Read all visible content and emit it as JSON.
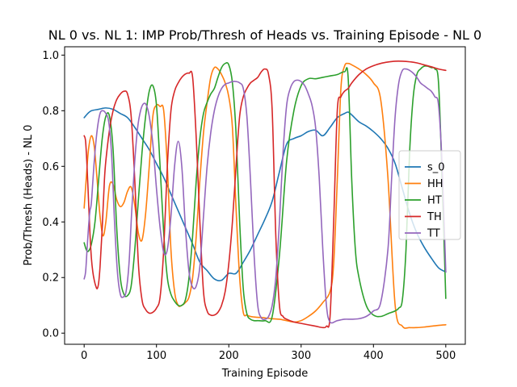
{
  "chart_data": {
    "type": "line",
    "title": "NL 0 vs. NL 1: IMP Prob/Thresh of Heads vs. Training Episode - NL 0",
    "xlabel": "Training Episode",
    "ylabel": "Prob/Thresh (Heads) - NL 0",
    "xlim": [
      -27,
      527
    ],
    "ylim": [
      -0.04,
      1.03
    ],
    "xticks": [
      0,
      100,
      200,
      300,
      400,
      500
    ],
    "yticks": [
      0.0,
      0.2,
      0.4,
      0.6,
      0.8,
      1.0
    ],
    "xtick_labels": [
      "0",
      "100",
      "200",
      "300",
      "400",
      "500"
    ],
    "ytick_labels": [
      "0.0",
      "0.2",
      "0.4",
      "0.6",
      "0.8",
      "1.0"
    ],
    "legend_position": "center-right",
    "grid": false,
    "series": [
      {
        "name": "s_0",
        "color": "#1f77b4",
        "x": [
          0,
          5,
          10,
          20,
          30,
          40,
          50,
          60,
          70,
          80,
          90,
          100,
          110,
          120,
          130,
          140,
          150,
          160,
          170,
          180,
          190,
          200,
          210,
          220,
          230,
          240,
          250,
          260,
          270,
          280,
          290,
          300,
          310,
          320,
          330,
          340,
          350,
          360,
          365,
          370,
          380,
          390,
          400,
          410,
          420,
          430,
          440,
          450,
          460,
          470,
          480,
          490,
          500
        ],
        "y": [
          0.775,
          0.79,
          0.8,
          0.805,
          0.81,
          0.805,
          0.79,
          0.775,
          0.74,
          0.7,
          0.66,
          0.61,
          0.56,
          0.5,
          0.44,
          0.38,
          0.32,
          0.255,
          0.225,
          0.195,
          0.19,
          0.215,
          0.215,
          0.255,
          0.3,
          0.355,
          0.41,
          0.475,
          0.58,
          0.68,
          0.7,
          0.71,
          0.725,
          0.73,
          0.71,
          0.74,
          0.775,
          0.79,
          0.795,
          0.785,
          0.76,
          0.745,
          0.725,
          0.7,
          0.665,
          0.61,
          0.52,
          0.43,
          0.36,
          0.31,
          0.27,
          0.235,
          0.22
        ]
      },
      {
        "name": "HH",
        "color": "#ff7f0e",
        "x": [
          0,
          3,
          6,
          10,
          14,
          18,
          22,
          26,
          30,
          35,
          40,
          45,
          50,
          55,
          60,
          65,
          70,
          75,
          80,
          85,
          90,
          95,
          100,
          105,
          110,
          115,
          120,
          125,
          130,
          135,
          140,
          145,
          150,
          155,
          160,
          165,
          170,
          175,
          180,
          185,
          190,
          195,
          200,
          205,
          210,
          215,
          220,
          225,
          230,
          235,
          240,
          250,
          260,
          270,
          280,
          290,
          300,
          310,
          320,
          330,
          340,
          345,
          350,
          355,
          360,
          365,
          370,
          380,
          390,
          400,
          410,
          420,
          430,
          440,
          450,
          460,
          470,
          480,
          490,
          500
        ],
        "y": [
          0.45,
          0.56,
          0.66,
          0.71,
          0.67,
          0.55,
          0.42,
          0.35,
          0.4,
          0.53,
          0.535,
          0.48,
          0.455,
          0.47,
          0.51,
          0.525,
          0.46,
          0.36,
          0.335,
          0.43,
          0.6,
          0.78,
          0.82,
          0.815,
          0.8,
          0.6,
          0.3,
          0.15,
          0.1,
          0.1,
          0.11,
          0.13,
          0.2,
          0.35,
          0.55,
          0.72,
          0.83,
          0.92,
          0.955,
          0.95,
          0.93,
          0.9,
          0.85,
          0.74,
          0.45,
          0.2,
          0.075,
          0.065,
          0.06,
          0.058,
          0.057,
          0.055,
          0.052,
          0.05,
          0.045,
          0.04,
          0.045,
          0.06,
          0.08,
          0.11,
          0.15,
          0.25,
          0.55,
          0.88,
          0.96,
          0.97,
          0.965,
          0.95,
          0.93,
          0.9,
          0.84,
          0.56,
          0.1,
          0.025,
          0.02,
          0.02,
          0.022,
          0.025,
          0.028,
          0.03
        ]
      },
      {
        "name": "HT",
        "color": "#2ca02c",
        "x": [
          0,
          3,
          6,
          10,
          15,
          20,
          25,
          30,
          35,
          40,
          45,
          50,
          55,
          60,
          65,
          70,
          75,
          80,
          85,
          90,
          95,
          100,
          105,
          110,
          115,
          120,
          125,
          130,
          135,
          140,
          145,
          150,
          155,
          160,
          165,
          170,
          175,
          180,
          185,
          190,
          195,
          200,
          205,
          210,
          215,
          220,
          225,
          230,
          235,
          240,
          250,
          260,
          270,
          280,
          290,
          300,
          310,
          320,
          330,
          340,
          350,
          360,
          365,
          370,
          375,
          380,
          390,
          400,
          410,
          420,
          430,
          435,
          440,
          445,
          450,
          455,
          460,
          465,
          470,
          475,
          480,
          485,
          490,
          495,
          500
        ],
        "y": [
          0.325,
          0.3,
          0.295,
          0.32,
          0.4,
          0.55,
          0.7,
          0.78,
          0.78,
          0.66,
          0.38,
          0.2,
          0.14,
          0.135,
          0.17,
          0.3,
          0.48,
          0.65,
          0.78,
          0.87,
          0.89,
          0.82,
          0.6,
          0.36,
          0.2,
          0.14,
          0.115,
          0.1,
          0.1,
          0.12,
          0.2,
          0.35,
          0.55,
          0.7,
          0.79,
          0.83,
          0.86,
          0.88,
          0.92,
          0.955,
          0.97,
          0.965,
          0.9,
          0.72,
          0.4,
          0.16,
          0.07,
          0.05,
          0.045,
          0.045,
          0.045,
          0.06,
          0.28,
          0.62,
          0.8,
          0.89,
          0.915,
          0.915,
          0.92,
          0.925,
          0.93,
          0.94,
          0.92,
          0.55,
          0.3,
          0.2,
          0.1,
          0.065,
          0.06,
          0.07,
          0.08,
          0.09,
          0.12,
          0.3,
          0.65,
          0.85,
          0.93,
          0.95,
          0.96,
          0.96,
          0.955,
          0.95,
          0.9,
          0.55,
          0.125
        ]
      },
      {
        "name": "TH",
        "color": "#d62728",
        "x": [
          0,
          2,
          4,
          6,
          8,
          10,
          12,
          14,
          16,
          18,
          20,
          22,
          25,
          28,
          30,
          35,
          40,
          45,
          50,
          55,
          60,
          65,
          70,
          75,
          80,
          85,
          90,
          95,
          100,
          105,
          110,
          115,
          120,
          125,
          130,
          135,
          140,
          145,
          150,
          155,
          160,
          165,
          170,
          175,
          180,
          185,
          190,
          195,
          200,
          205,
          210,
          215,
          220,
          225,
          230,
          235,
          240,
          245,
          250,
          255,
          260,
          265,
          270,
          275,
          280,
          290,
          300,
          310,
          320,
          330,
          335,
          340,
          345,
          350,
          355,
          360,
          365,
          370,
          380,
          390,
          400,
          410,
          420,
          430,
          440,
          450,
          460,
          470,
          480,
          490,
          500
        ],
        "y": [
          0.71,
          0.69,
          0.6,
          0.48,
          0.36,
          0.27,
          0.22,
          0.19,
          0.17,
          0.16,
          0.18,
          0.24,
          0.38,
          0.55,
          0.62,
          0.73,
          0.8,
          0.84,
          0.86,
          0.87,
          0.86,
          0.78,
          0.55,
          0.25,
          0.12,
          0.085,
          0.072,
          0.075,
          0.09,
          0.13,
          0.3,
          0.6,
          0.8,
          0.87,
          0.9,
          0.92,
          0.932,
          0.935,
          0.92,
          0.7,
          0.4,
          0.15,
          0.08,
          0.065,
          0.065,
          0.075,
          0.1,
          0.15,
          0.25,
          0.4,
          0.6,
          0.78,
          0.85,
          0.88,
          0.9,
          0.91,
          0.92,
          0.94,
          0.95,
          0.93,
          0.8,
          0.35,
          0.1,
          0.06,
          0.05,
          0.04,
          0.035,
          0.03,
          0.025,
          0.02,
          0.025,
          0.06,
          0.4,
          0.8,
          0.85,
          0.87,
          0.88,
          0.9,
          0.93,
          0.95,
          0.962,
          0.97,
          0.975,
          0.978,
          0.978,
          0.976,
          0.972,
          0.965,
          0.958,
          0.95,
          0.945
        ]
      },
      {
        "name": "TT",
        "color": "#9467bd",
        "x": [
          0,
          2,
          4,
          6,
          8,
          10,
          14,
          18,
          22,
          26,
          30,
          34,
          38,
          42,
          46,
          50,
          54,
          58,
          62,
          66,
          70,
          74,
          78,
          82,
          86,
          90,
          95,
          100,
          105,
          110,
          115,
          120,
          125,
          130,
          135,
          140,
          145,
          150,
          155,
          160,
          165,
          170,
          175,
          180,
          185,
          190,
          195,
          200,
          205,
          210,
          215,
          220,
          225,
          230,
          235,
          240,
          245,
          250,
          255,
          260,
          265,
          270,
          275,
          280,
          285,
          290,
          295,
          300,
          305,
          310,
          315,
          320,
          325,
          330,
          335,
          340,
          350,
          360,
          370,
          380,
          390,
          400,
          410,
          420,
          425,
          430,
          435,
          440,
          445,
          450,
          455,
          460,
          465,
          470,
          475,
          480,
          485,
          490,
          495,
          500
        ],
        "y": [
          0.195,
          0.22,
          0.3,
          0.38,
          0.44,
          0.47,
          0.62,
          0.73,
          0.79,
          0.8,
          0.79,
          0.76,
          0.64,
          0.4,
          0.22,
          0.14,
          0.13,
          0.15,
          0.25,
          0.45,
          0.62,
          0.74,
          0.8,
          0.825,
          0.82,
          0.78,
          0.68,
          0.52,
          0.38,
          0.29,
          0.3,
          0.42,
          0.6,
          0.69,
          0.6,
          0.38,
          0.22,
          0.165,
          0.17,
          0.24,
          0.42,
          0.6,
          0.72,
          0.8,
          0.85,
          0.88,
          0.895,
          0.9,
          0.905,
          0.905,
          0.9,
          0.88,
          0.78,
          0.55,
          0.28,
          0.1,
          0.055,
          0.05,
          0.06,
          0.1,
          0.2,
          0.4,
          0.65,
          0.82,
          0.88,
          0.905,
          0.91,
          0.905,
          0.89,
          0.86,
          0.82,
          0.74,
          0.56,
          0.3,
          0.1,
          0.04,
          0.045,
          0.05,
          0.05,
          0.052,
          0.06,
          0.08,
          0.11,
          0.3,
          0.55,
          0.78,
          0.9,
          0.945,
          0.95,
          0.945,
          0.935,
          0.92,
          0.9,
          0.89,
          0.88,
          0.87,
          0.85,
          0.82,
          0.6,
          0.22
        ]
      }
    ]
  }
}
